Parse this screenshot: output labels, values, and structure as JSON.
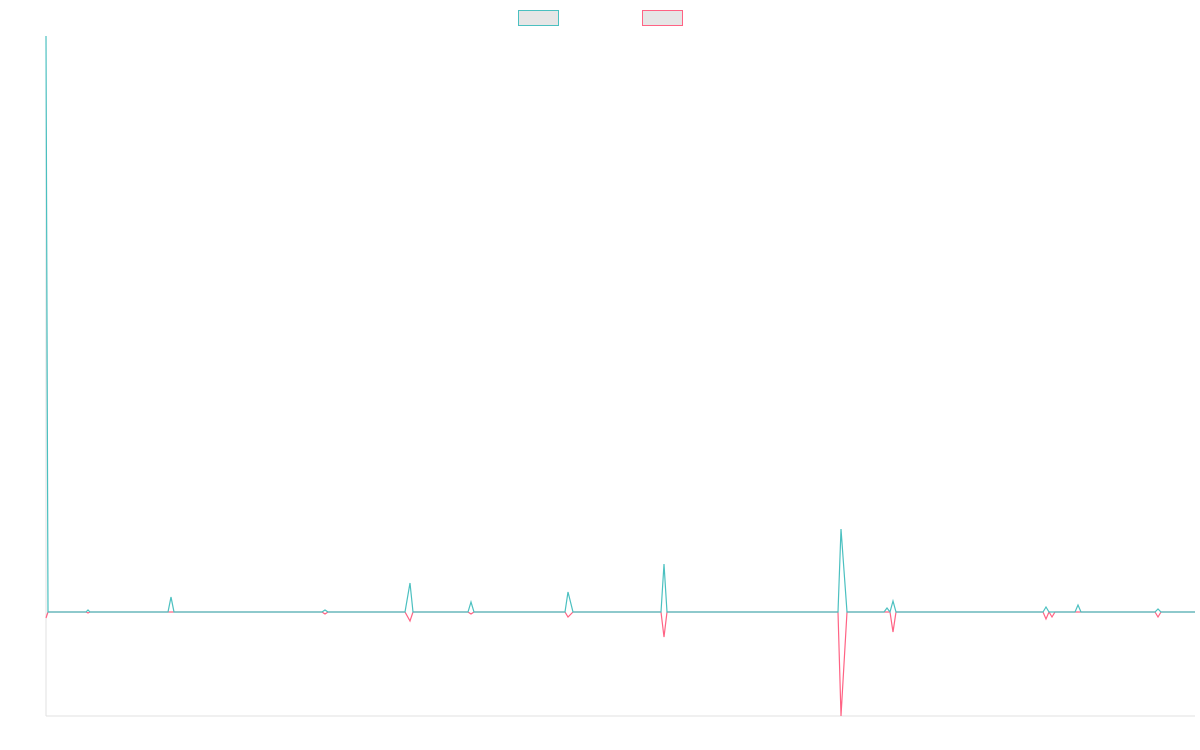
{
  "chart_data": {
    "type": "line",
    "x": [
      0,
      2,
      40,
      42,
      44,
      122,
      125,
      128,
      276,
      279,
      282,
      359,
      364,
      367,
      422,
      425,
      428,
      519,
      522,
      527,
      615,
      618,
      621,
      792,
      795,
      801,
      838,
      841,
      844,
      847,
      850,
      997,
      1000,
      1003,
      1006,
      1009,
      1029,
      1032,
      1035,
      1109,
      1112,
      1115,
      1149
    ],
    "series": [
      {
        "color": "#4bc0c0",
        "values": [
          576,
          0,
          0,
          2,
          0,
          0,
          15,
          0,
          0,
          2,
          0,
          0,
          29,
          0,
          0,
          10,
          0,
          0,
          20,
          0,
          0,
          48,
          0,
          0,
          83,
          0,
          0,
          4,
          0,
          11,
          0,
          0,
          5,
          0,
          0,
          0,
          0,
          7,
          0,
          0,
          3,
          0,
          0
        ]
      },
      {
        "color": "#ff6384",
        "values": [
          -6,
          0,
          0,
          -1,
          0,
          0,
          0,
          0,
          0,
          -2,
          0,
          0,
          -9,
          0,
          0,
          -2,
          0,
          0,
          -5,
          0,
          0,
          -25,
          0,
          0,
          -104,
          0,
          0,
          0,
          0,
          -20,
          0,
          0,
          -7,
          0,
          -5,
          0,
          0,
          0,
          0,
          0,
          -5,
          0,
          0
        ]
      }
    ],
    "xlim": [
      0,
      1149
    ],
    "ylim": [
      -104,
      576
    ]
  }
}
